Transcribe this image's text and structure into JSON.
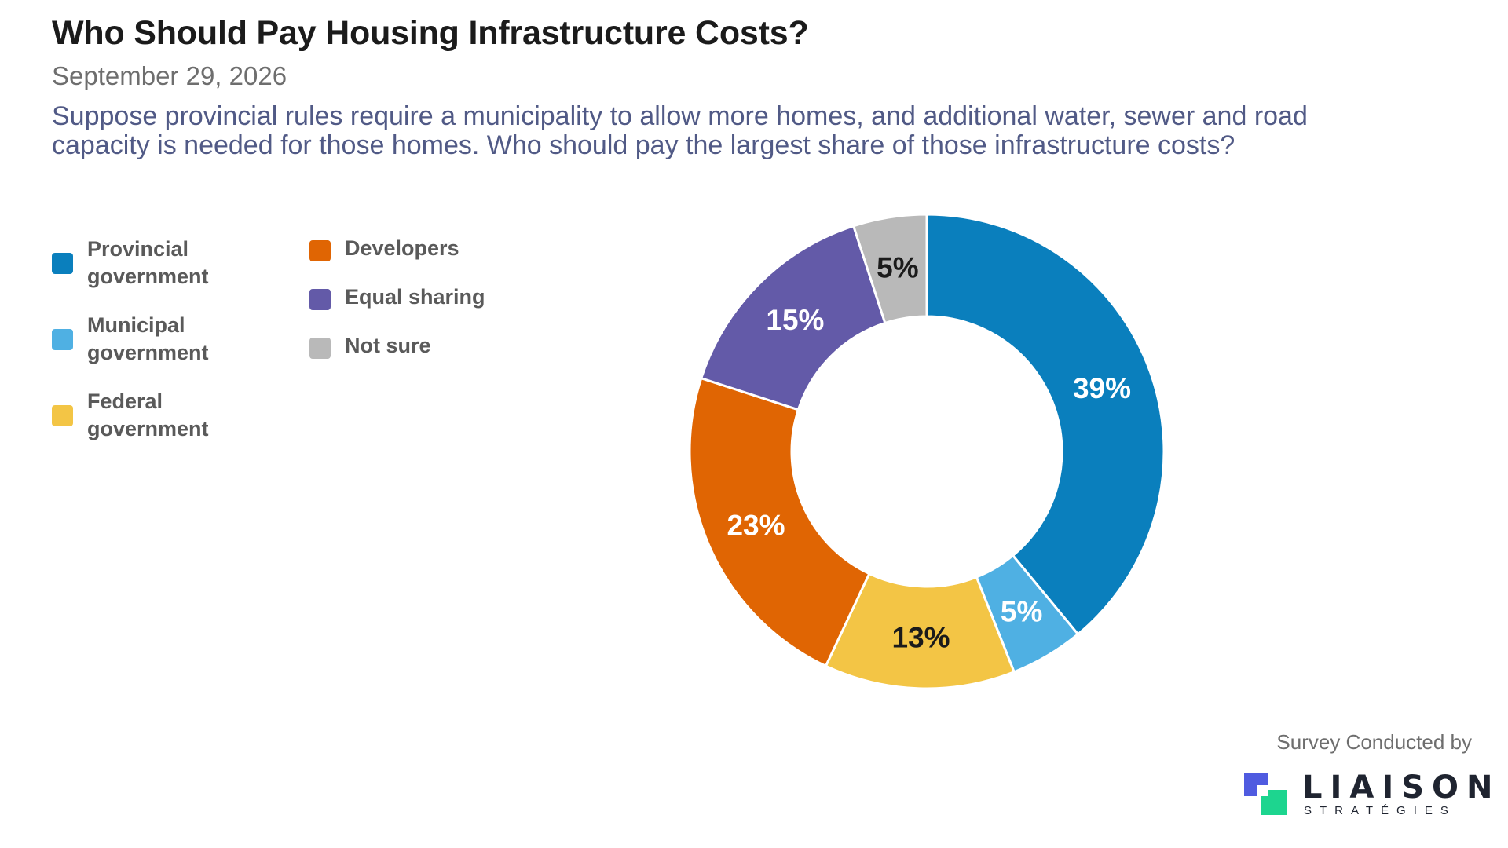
{
  "header": {
    "title": "Who Should Pay Housing Infrastructure Costs?",
    "date": "September 29, 2026",
    "question": "Suppose provincial rules require a municipality to allow more homes, and additional water, sewer and road capacity is needed for those homes. Who should pay the largest share of those infrastructure costs?"
  },
  "legend": {
    "items": [
      {
        "label": "Provincial government",
        "color": "#0a7fbd"
      },
      {
        "label": "Municipal government",
        "color": "#4fb0e3"
      },
      {
        "label": "Federal government",
        "color": "#f3c545"
      },
      {
        "label": "Developers",
        "color": "#e06503"
      },
      {
        "label": "Equal sharing",
        "color": "#635aa8"
      },
      {
        "label": "Not sure",
        "color": "#b9b9b9"
      }
    ]
  },
  "chart_data": {
    "type": "pie",
    "donut": true,
    "title": "Who Should Pay Housing Infrastructure Costs?",
    "legend_position": "left",
    "slices": [
      {
        "label": "Provincial government",
        "value": 39,
        "display": "39%",
        "color": "#0a7fbd",
        "label_color": "#ffffff"
      },
      {
        "label": "Municipal government",
        "value": 5,
        "display": "5%",
        "color": "#4fb0e3",
        "label_color": "#ffffff"
      },
      {
        "label": "Federal government",
        "value": 13,
        "display": "13%",
        "color": "#f3c545",
        "label_color": "#1b1b1b"
      },
      {
        "label": "Developers",
        "value": 23,
        "display": "23%",
        "color": "#e06503",
        "label_color": "#ffffff"
      },
      {
        "label": "Equal sharing",
        "value": 15,
        "display": "15%",
        "color": "#635aa8",
        "label_color": "#ffffff"
      },
      {
        "label": "Not sure",
        "value": 5,
        "display": "5%",
        "color": "#b9b9b9",
        "label_color": "#1b1b1b"
      }
    ]
  },
  "footer": {
    "credit": "Survey Conducted by",
    "logo_name": "LIAISON",
    "logo_sub": "STRATÉGIES"
  }
}
